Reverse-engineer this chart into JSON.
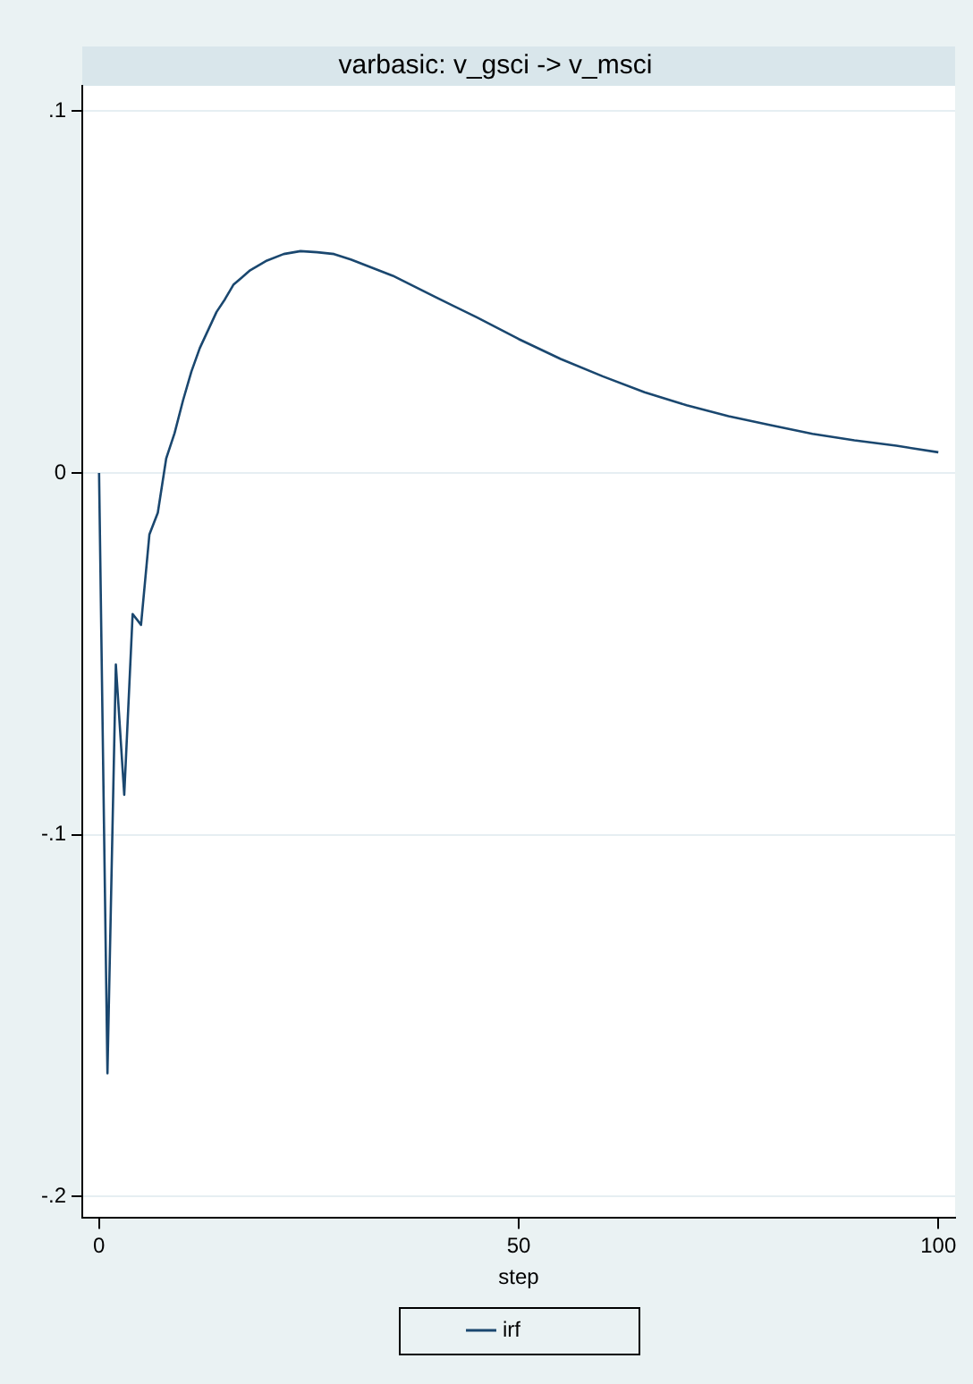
{
  "chart_data": {
    "type": "line",
    "title": "varbasic: v_gsci -> v_msci",
    "xlabel": "step",
    "x": [
      0,
      1,
      2,
      3,
      4,
      5,
      6,
      7,
      8,
      9,
      10,
      11,
      12,
      13,
      14,
      15,
      16,
      17,
      18,
      20,
      22,
      24,
      26,
      28,
      30,
      35,
      40,
      45,
      50,
      55,
      60,
      65,
      70,
      75,
      80,
      85,
      90,
      95,
      100
    ],
    "series": [
      {
        "name": "irf",
        "color": "#1a476f",
        "values": [
          0,
          -0.166,
          -0.053,
          -0.089,
          -0.039,
          -0.042,
          -0.017,
          -0.011,
          0.004,
          0.011,
          0.02,
          0.028,
          0.0345,
          0.0395,
          0.0445,
          0.048,
          0.052,
          0.054,
          0.056,
          0.0587,
          0.0605,
          0.0613,
          0.061,
          0.0605,
          0.059,
          0.0545,
          0.0487,
          0.043,
          0.037,
          0.0315,
          0.0267,
          0.0223,
          0.0187,
          0.0157,
          0.0132,
          0.0108,
          0.009,
          0.0075,
          0.0057
        ]
      }
    ],
    "xlim": [
      -2,
      102
    ],
    "xticks": [
      0,
      50,
      100
    ],
    "ylim": [
      -0.206,
      0.107
    ],
    "yticks": [
      {
        "value": 0.1,
        "label": ".1"
      },
      0,
      {
        "value": -0.1,
        "label": "-.1"
      },
      {
        "value": -0.2,
        "label": "-.2"
      }
    ],
    "grid": "y",
    "legend": "bottom",
    "marker": "none",
    "line_style": "solid"
  }
}
